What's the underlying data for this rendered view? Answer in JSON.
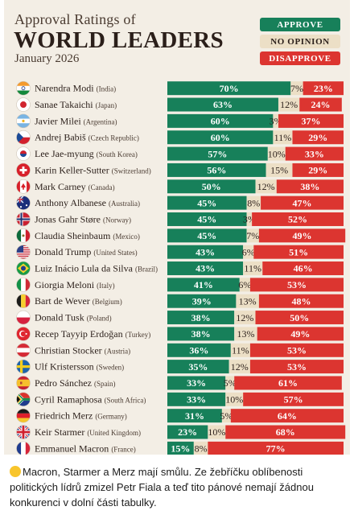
{
  "header": {
    "line1": "Approval Ratings of",
    "line2": "WORLD LEADERS",
    "line3": "January 2026"
  },
  "legend": {
    "approve": "APPROVE",
    "no_opinion": "NO OPINION",
    "disapprove": "DISAPPROVE"
  },
  "colors": {
    "approve": "#17805a",
    "no_opinion": "#ecdfc6",
    "disapprove": "#dc3530"
  },
  "caption": {
    "emoji": "grinning-sweat-emoji",
    "text": "Macron, Starmer a Merz mají smůlu. Ze žebříčku oblíbenosti politických lídrů zmizel Petr Fiala a teď tito pánové nemají žádnou konkurenci v dolní části tabulky."
  },
  "chart_data": {
    "type": "bar",
    "stacked": true,
    "horizontal": true,
    "categories": [
      "Narendra Modi",
      "Sanae Takaichi",
      "Javier Milei",
      "Andrej Babiš",
      "Lee Jae-myung",
      "Karin Keller-Sutter",
      "Mark Carney",
      "Anthony Albanese",
      "Jonas Gahr Støre",
      "Claudia Sheinbaum",
      "Donald Trump",
      "Luiz Inácio Lula da Silva",
      "Giorgia Meloni",
      "Bart de Wever",
      "Donald Tusk",
      "Recep Tayyip Erdoğan",
      "Christian Stocker",
      "Ulf Kristersson",
      "Pedro Sánchez",
      "Cyril Ramaphosa",
      "Friedrich Merz",
      "Keir Starmer",
      "Emmanuel Macron"
    ],
    "countries": [
      "(India)",
      "(Japan)",
      "(Argentina)",
      "(Czech Republic)",
      "(South Korea)",
      "(Switzerland)",
      "(Canada)",
      "(Australia)",
      "(Norway)",
      "(Mexico)",
      "(United States)",
      "(Brazil)",
      "(Italy)",
      "(Belgium)",
      "(Poland)",
      "(Turkey)",
      "(Austria)",
      "(Sweden)",
      "(Spain)",
      "(South Africa)",
      "(Germany)",
      "(United Kingdom)",
      "(France)"
    ],
    "flags": [
      "india-flag-icon",
      "japan-flag-icon",
      "argentina-flag-icon",
      "czech-republic-flag-icon",
      "south-korea-flag-icon",
      "switzerland-flag-icon",
      "canada-flag-icon",
      "australia-flag-icon",
      "norway-flag-icon",
      "mexico-flag-icon",
      "united-states-flag-icon",
      "brazil-flag-icon",
      "italy-flag-icon",
      "belgium-flag-icon",
      "poland-flag-icon",
      "turkey-flag-icon",
      "austria-flag-icon",
      "sweden-flag-icon",
      "spain-flag-icon",
      "south-africa-flag-icon",
      "germany-flag-icon",
      "united-kingdom-flag-icon",
      "france-flag-icon"
    ],
    "series": [
      {
        "name": "APPROVE",
        "values": [
          70,
          63,
          60,
          60,
          57,
          56,
          50,
          45,
          45,
          45,
          43,
          43,
          41,
          39,
          38,
          38,
          36,
          35,
          33,
          33,
          31,
          23,
          15
        ]
      },
      {
        "name": "NO OPINION",
        "values": [
          7,
          12,
          3,
          11,
          10,
          15,
          12,
          8,
          3,
          7,
          6,
          11,
          6,
          13,
          12,
          13,
          11,
          12,
          5,
          10,
          5,
          10,
          8
        ]
      },
      {
        "name": "DISAPPROVE",
        "values": [
          23,
          24,
          37,
          29,
          33,
          29,
          38,
          47,
          52,
          49,
          51,
          46,
          53,
          48,
          50,
          49,
          53,
          53,
          61,
          57,
          64,
          68,
          77
        ]
      }
    ],
    "xlim": [
      0,
      100
    ],
    "unit": "%"
  }
}
